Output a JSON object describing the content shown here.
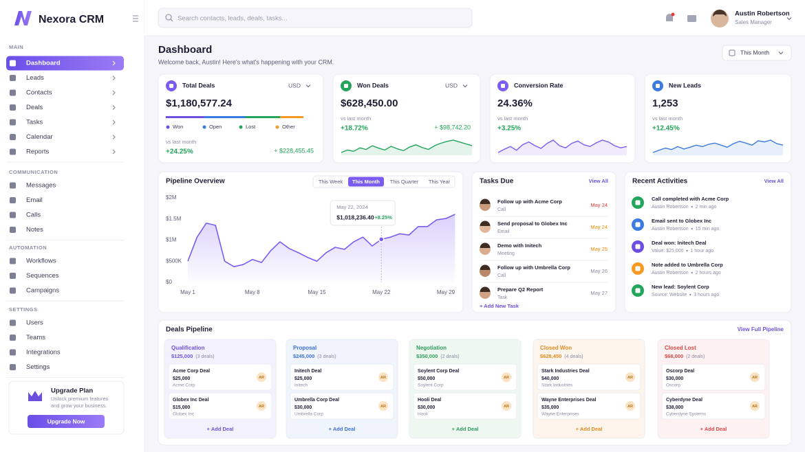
{
  "brand": "Nexora CRM",
  "header": {
    "search_placeholder": "Search contacts, leads, deals, tasks...",
    "user_name": "Austin Robertson",
    "user_role": "Sales Manager"
  },
  "sidebar": {
    "sections": [
      {
        "title": "MAIN",
        "expandable": true,
        "items": [
          {
            "label": "Dashboard",
            "active": true
          },
          {
            "label": "Leads"
          },
          {
            "label": "Contacts"
          },
          {
            "label": "Deals"
          },
          {
            "label": "Tasks"
          },
          {
            "label": "Calendar"
          },
          {
            "label": "Reports"
          }
        ]
      },
      {
        "title": "COMMUNICATION",
        "items": [
          {
            "label": "Messages"
          },
          {
            "label": "Email"
          },
          {
            "label": "Calls"
          },
          {
            "label": "Notes"
          }
        ]
      },
      {
        "title": "AUTOMATION",
        "items": [
          {
            "label": "Workflows"
          },
          {
            "label": "Sequences"
          },
          {
            "label": "Campaigns"
          }
        ]
      },
      {
        "title": "SETTINGS",
        "items": [
          {
            "label": "Users"
          },
          {
            "label": "Teams"
          },
          {
            "label": "Integrations"
          },
          {
            "label": "Settings"
          }
        ]
      }
    ]
  },
  "upgrade": {
    "title": "Upgrade Plan",
    "text_lines": [
      "Unlock premium features",
      "and grow your business."
    ],
    "button": "Upgrade Now"
  },
  "page": {
    "title": "Dashboard",
    "subtitle": "Welcome back, Austin! Here's what's happening with your CRM.",
    "period": "This Month"
  },
  "kpis": [
    {
      "title": "Total Deals",
      "color": "#7b5cf0",
      "currency": "USD",
      "value": "$1,180,577.24",
      "breakdown": [
        {
          "name": "Won",
          "color": "#6d4fe0",
          "value": 28
        },
        {
          "name": "Open",
          "color": "#3b7be0",
          "value": 30
        },
        {
          "name": "Lost",
          "color": "#22a55a",
          "value": 25
        },
        {
          "name": "Other",
          "color": "#f59a23",
          "value": 17
        }
      ],
      "compare": "vs last month",
      "change": "+24.25%",
      "change_amount": "+ $228,455.45"
    },
    {
      "title": "Won Deals",
      "color": "#22a55a",
      "currency": "USD",
      "value": "$628,450.00",
      "compare": "vs last month",
      "change": "+18.72%",
      "change_amount": "+ $98,742.20",
      "sparkline": [
        30,
        38,
        34,
        45,
        40,
        52,
        44,
        38,
        50,
        42,
        36,
        48,
        55,
        46,
        40,
        52,
        60,
        66,
        70,
        64,
        58,
        52
      ]
    },
    {
      "title": "Conversion Rate",
      "color": "#7b5cf0",
      "value": "24.36%",
      "compare": "vs last month",
      "change": "+3.25%",
      "sparkline": [
        35,
        42,
        48,
        40,
        52,
        58,
        50,
        44,
        55,
        62,
        50,
        45,
        55,
        60,
        52,
        48,
        56,
        62,
        58,
        50,
        45,
        48
      ]
    },
    {
      "title": "New Leads",
      "color": "#3b7be0",
      "value": "1,253",
      "compare": "vs last month",
      "change": "+12.45%",
      "sparkline": [
        30,
        38,
        45,
        40,
        50,
        42,
        48,
        55,
        50,
        58,
        62,
        55,
        48,
        60,
        68,
        62,
        55,
        70,
        66,
        72,
        60,
        55
      ]
    }
  ],
  "pipeline_overview": {
    "tabs": [
      {
        "label": "This Week"
      },
      {
        "label": "This Month",
        "active": true
      },
      {
        "label": "This Quarter"
      },
      {
        "label": "This Year"
      }
    ]
  },
  "chart_data": {
    "type": "line",
    "title": "Pipeline Overview",
    "color": "#7b5cf0",
    "categories": [
      "May 1",
      null,
      null,
      null,
      null,
      null,
      null,
      "May 8",
      null,
      null,
      null,
      null,
      null,
      null,
      "May 15",
      null,
      null,
      null,
      null,
      null,
      null,
      "May 22",
      null,
      null,
      null,
      null,
      null,
      null,
      "May 29",
      null
    ],
    "values": [
      500000,
      1070000,
      1400000,
      1350000,
      500000,
      370000,
      420000,
      540000,
      470000,
      750000,
      960000,
      800000,
      700000,
      590000,
      500000,
      700000,
      830000,
      780000,
      960000,
      1070000,
      860000,
      1018236.4,
      1070000,
      1150000,
      1120000,
      1320000,
      1320000,
      1480000,
      1510000,
      1610000
    ],
    "ylim": [
      0,
      2000000
    ],
    "yticks": [
      {
        "value": 0,
        "label": "$0"
      },
      {
        "value": 500000,
        "label": "$500K"
      },
      {
        "value": 1000000,
        "label": "$1M"
      },
      {
        "value": 1500000,
        "label": "$1.5M"
      },
      {
        "value": 2000000,
        "label": "$2M"
      }
    ],
    "tooltip": {
      "index": 21,
      "date": "May 22, 2024",
      "value": "$1,018,236.40",
      "change": "+8.25%"
    }
  },
  "tasks": {
    "title": "Tasks Due",
    "link": "View All",
    "add": "+ Add New Task",
    "items": [
      {
        "title": "Follow up with Acme Corp",
        "type": "Call",
        "date": "May 24",
        "date_color": "#e53935"
      },
      {
        "title": "Send proposal to Globex Inc",
        "type": "Email",
        "date": "May 24",
        "date_color": "#f08c00"
      },
      {
        "title": "Demo with Initech",
        "type": "Meeting",
        "date": "May 25",
        "date_color": "#f08c00"
      },
      {
        "title": "Follow up with Umbrella Corp",
        "type": "Call",
        "date": "May 26",
        "date_color": "#8a8ca3"
      },
      {
        "title": "Prepare Q2 Report",
        "type": "Task",
        "date": "May 27",
        "date_color": "#8a8ca3"
      }
    ]
  },
  "activities": {
    "title": "Recent Activities",
    "link": "View All",
    "items": [
      {
        "title": "Call completed with Acme Corp",
        "detail": "Austin Robertson",
        "time": "2 min ago",
        "color": "#22a55a"
      },
      {
        "title": "Email sent to Globex Inc",
        "detail": "Austin Robertson",
        "time": "15 min ago",
        "color": "#3b7be0"
      },
      {
        "title": "Deal won: Initech Deal",
        "detail": "Value: $25,000",
        "time": "1 hour ago",
        "color": "#6d4fe0"
      },
      {
        "title": "Note added to Umbrella Corp",
        "detail": "Austin Robertson",
        "time": "2 hours ago",
        "color": "#f59a23"
      },
      {
        "title": "New lead: Soylent Corp",
        "detail": "Source: Website",
        "time": "3 hours ago",
        "color": "#22a55a"
      }
    ]
  },
  "deals_pipeline": {
    "title": "Deals Pipeline",
    "link": "View Full Pipeline",
    "stages": [
      {
        "name": "Qualification",
        "amount": "$125,000",
        "count": "(3 deals)",
        "color": "#6d4fe0",
        "bg": "#f4f1ff",
        "add": "+ Add Deal",
        "deals": [
          {
            "name": "Acme Corp Deal",
            "amount": "$25,000",
            "company": "Acme Corp",
            "owner": "AR"
          },
          {
            "name": "Globex Inc Deal",
            "amount": "$15,000",
            "company": "Globex Inc",
            "owner": "AR"
          }
        ]
      },
      {
        "name": "Proposal",
        "amount": "$245,000",
        "count": "(3 deals)",
        "color": "#3b6fd8",
        "bg": "#eff4fd",
        "add": "+ Add Deal",
        "deals": [
          {
            "name": "Initech Deal",
            "amount": "$25,000",
            "company": "Initech",
            "owner": "AR"
          },
          {
            "name": "Umbrella Corp Deal",
            "amount": "$30,000",
            "company": "Umbrella Corp",
            "owner": "AR"
          }
        ]
      },
      {
        "name": "Negotiation",
        "amount": "$350,000",
        "count": "(2 deals)",
        "color": "#2e9b5a",
        "bg": "#eef8f1",
        "add": "+ Add Deal",
        "deals": [
          {
            "name": "Soylent Corp Deal",
            "amount": "$50,000",
            "company": "Soylent Corp",
            "owner": "AR"
          },
          {
            "name": "Hooli Deal",
            "amount": "$30,000",
            "company": "Hooli",
            "owner": "AR"
          }
        ]
      },
      {
        "name": "Closed Won",
        "amount": "$628,450",
        "count": "(4 deals)",
        "color": "#e08a1e",
        "bg": "#fdf5ec",
        "add": "+ Add Deal",
        "deals": [
          {
            "name": "Stark Industries Deal",
            "amount": "$40,000",
            "company": "Stark Industries",
            "owner": "AR"
          },
          {
            "name": "Wayne Enterprises Deal",
            "amount": "$35,000",
            "company": "Wayne Enterprises",
            "owner": "AR"
          }
        ]
      },
      {
        "name": "Closed Lost",
        "amount": "$68,000",
        "count": "(2 deals)",
        "color": "#d64545",
        "bg": "#fdf1f1",
        "add": "+ Add Deal",
        "deals": [
          {
            "name": "Oscorp Deal",
            "amount": "$30,000",
            "company": "Oscorp",
            "owner": "AR"
          },
          {
            "name": "Cyberdyne Deal",
            "amount": "$38,000",
            "company": "Cyberdyne Systems",
            "owner": "AR"
          }
        ]
      }
    ]
  }
}
